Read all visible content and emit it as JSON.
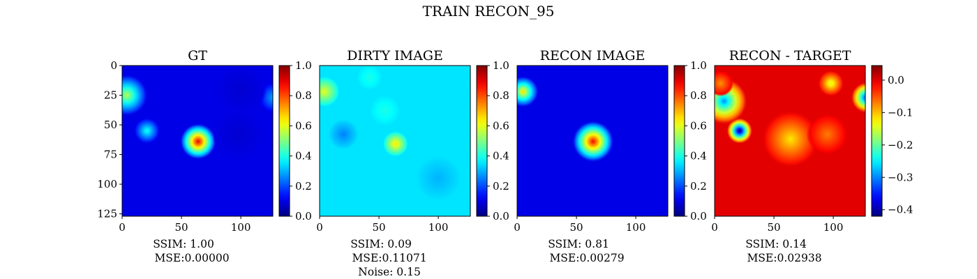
{
  "figure": {
    "title": "TRAIN RECON_95"
  },
  "colormap": "jet",
  "chart_data": [
    {
      "type": "heatmap",
      "title": "GT",
      "xticks": [
        0,
        50,
        100
      ],
      "yticks": [
        0,
        25,
        50,
        75,
        100,
        125
      ],
      "xlim": [
        0,
        127
      ],
      "ylim": [
        127,
        0
      ],
      "stats": [
        "SSIM: 1.00",
        "MSE:0.00000"
      ],
      "colorbar": {
        "vmin": 0.0,
        "vmax": 1.0,
        "ticks": [
          "0.0",
          "0.2",
          "0.4",
          "0.6",
          "0.8",
          "1.0"
        ],
        "tick_values": [
          0.0,
          0.2,
          0.4,
          0.6,
          0.8,
          1.0
        ]
      },
      "background": 0.1,
      "blobs": [
        {
          "x": 64,
          "y": 64,
          "r": 7,
          "v": 0.9
        },
        {
          "x": 4,
          "y": 25,
          "r": 8,
          "v": 0.55
        },
        {
          "x": 21,
          "y": 55,
          "r": 5,
          "v": 0.4
        },
        {
          "x": 128,
          "y": 27,
          "r": 6,
          "v": 0.3
        },
        {
          "x": 98,
          "y": 58,
          "r": 10,
          "v": 0.08
        },
        {
          "x": 100,
          "y": 20,
          "r": 10,
          "v": 0.08
        }
      ]
    },
    {
      "type": "heatmap",
      "title": "DIRTY IMAGE",
      "xticks": [
        0,
        50,
        100
      ],
      "yticks": [],
      "xlim": [
        0,
        127
      ],
      "ylim": [
        127,
        0
      ],
      "stats": [
        "SSIM: 0.09",
        "MSE:0.11071",
        "Noise: 0.15"
      ],
      "colorbar": {
        "vmin": 0.0,
        "vmax": 1.0,
        "ticks": [
          "0.0",
          "0.2",
          "0.4",
          "0.6",
          "0.8",
          "1.0"
        ],
        "tick_values": [
          0.0,
          0.2,
          0.4,
          0.6,
          0.8,
          1.0
        ]
      },
      "background": 0.35,
      "blobs": [
        {
          "x": 64,
          "y": 66,
          "r": 5,
          "v": 0.65
        },
        {
          "x": 4,
          "y": 22,
          "r": 6,
          "v": 0.6
        },
        {
          "x": 55,
          "y": 38,
          "r": 6,
          "v": 0.4
        },
        {
          "x": 42,
          "y": 10,
          "r": 5,
          "v": 0.4
        },
        {
          "x": 20,
          "y": 58,
          "r": 6,
          "v": 0.25
        },
        {
          "x": 100,
          "y": 95,
          "r": 9,
          "v": 0.3
        }
      ]
    },
    {
      "type": "heatmap",
      "title": "RECON IMAGE",
      "xticks": [
        0,
        50,
        100
      ],
      "yticks": [],
      "xlim": [
        0,
        127
      ],
      "ylim": [
        127,
        0
      ],
      "stats": [
        "SSIM: 0.81",
        "MSE:0.00279"
      ],
      "colorbar": {
        "vmin": 0.0,
        "vmax": 1.0,
        "ticks": [
          "0.0",
          "0.2",
          "0.4",
          "0.6",
          "0.8",
          "1.0"
        ],
        "tick_values": [
          0.0,
          0.2,
          0.4,
          0.6,
          0.8,
          1.0
        ]
      },
      "background": 0.1,
      "blobs": [
        {
          "x": 64,
          "y": 64,
          "r": 8,
          "v": 0.88
        },
        {
          "x": 5,
          "y": 22,
          "r": 6,
          "v": 0.65
        }
      ]
    },
    {
      "type": "heatmap",
      "title": "RECON - TARGET",
      "xticks": [
        0,
        50,
        100
      ],
      "yticks": [],
      "xlim": [
        0,
        127
      ],
      "ylim": [
        127,
        0
      ],
      "stats": [
        "SSIM: 0.14",
        "MSE:0.02938"
      ],
      "colorbar": {
        "vmin": -0.42,
        "vmax": 0.045,
        "ticks": [
          "0.0",
          "−0.1",
          "−0.2",
          "−0.3",
          "−0.4"
        ],
        "tick_values": [
          0.0,
          -0.1,
          -0.2,
          -0.3,
          -0.4
        ]
      },
      "background": 0.0,
      "blobs": [
        {
          "x": 21,
          "y": 55,
          "r": 5,
          "v": -0.42
        },
        {
          "x": 8,
          "y": 30,
          "r": 9,
          "v": -0.3
        },
        {
          "x": 128,
          "y": 27,
          "r": 6,
          "v": -0.35
        },
        {
          "x": 64,
          "y": 62,
          "r": 11,
          "v": -0.12
        },
        {
          "x": 5,
          "y": 15,
          "r": 5,
          "v": -0.08
        },
        {
          "x": 98,
          "y": 15,
          "r": 5,
          "v": -0.15
        },
        {
          "x": 95,
          "y": 58,
          "r": 8,
          "v": -0.07
        }
      ]
    }
  ]
}
